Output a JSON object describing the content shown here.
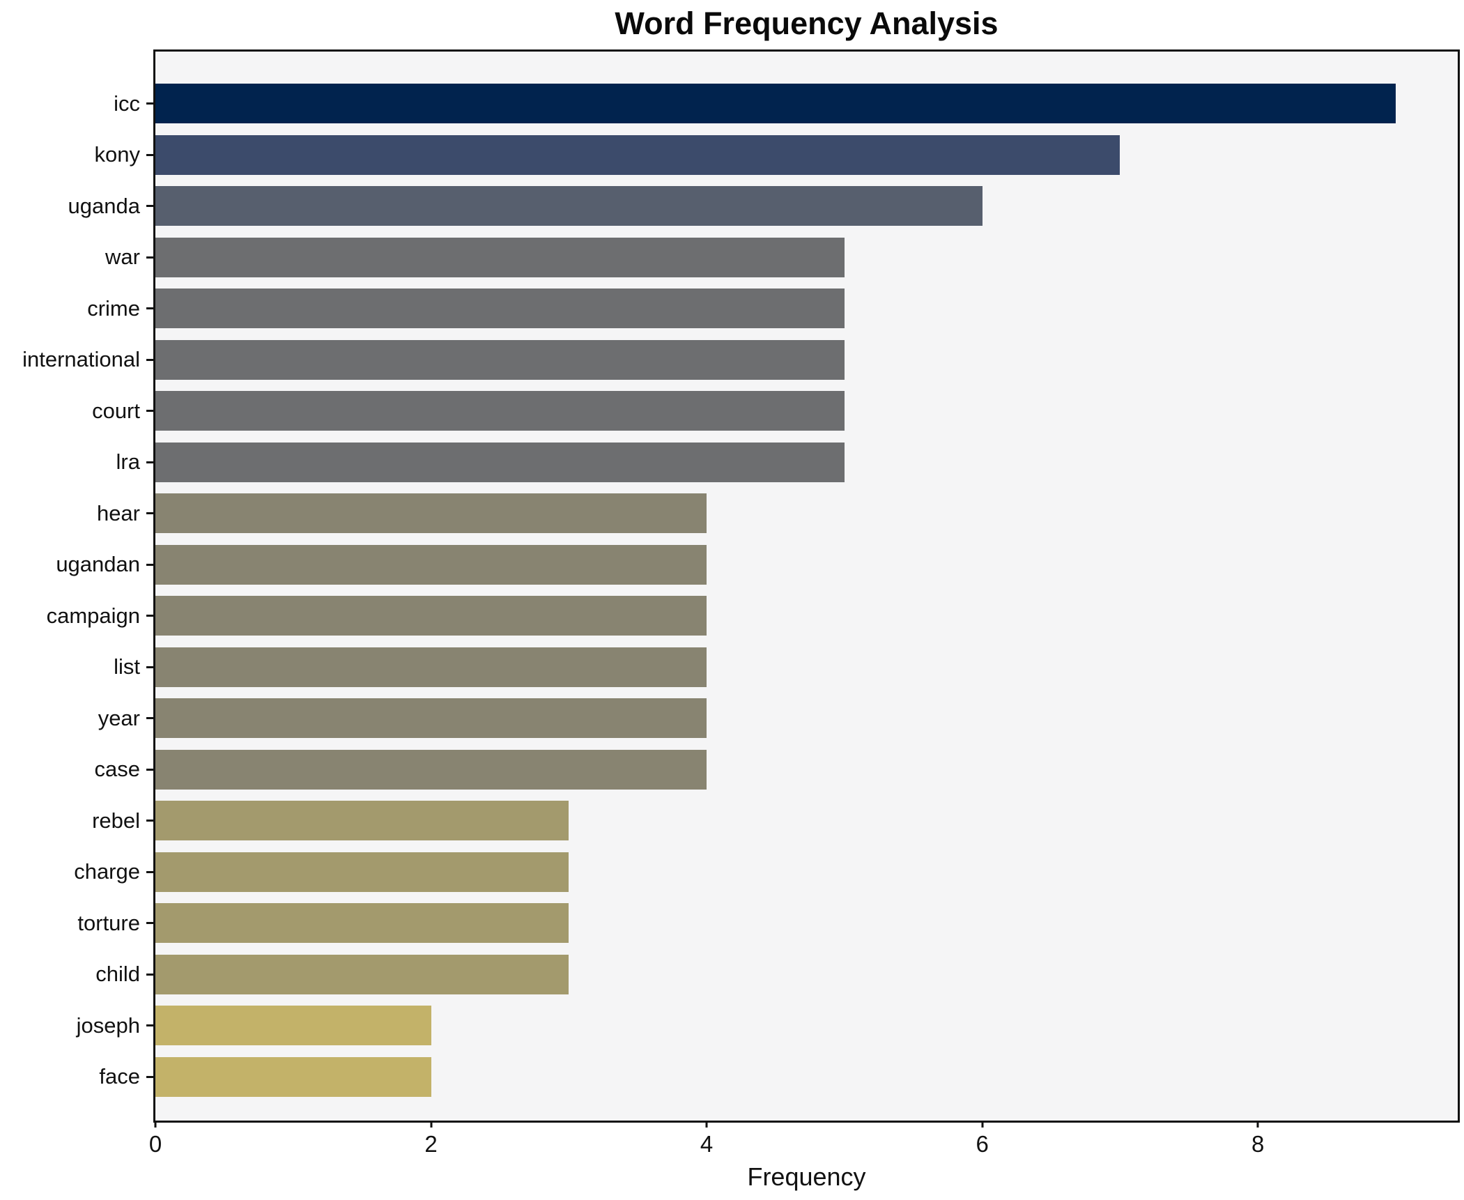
{
  "title": "Word Frequency Analysis",
  "xlabel": "Frequency",
  "chart_data": {
    "type": "bar",
    "orientation": "horizontal",
    "title": "Word Frequency Analysis",
    "xlabel": "Frequency",
    "ylabel": "",
    "grid": false,
    "legend_position": "none",
    "xlim": [
      0,
      9.45
    ],
    "xticks": [
      0,
      2,
      4,
      6,
      8
    ],
    "plot_background": "#f5f5f6",
    "figure_background": "#ffffff",
    "axis_color": "#111111",
    "categories": [
      "icc",
      "kony",
      "uganda",
      "war",
      "crime",
      "international",
      "court",
      "lra",
      "hear",
      "ugandan",
      "campaign",
      "list",
      "year",
      "case",
      "rebel",
      "charge",
      "torture",
      "child",
      "joseph",
      "face"
    ],
    "values": [
      9,
      7,
      6,
      5,
      5,
      5,
      5,
      5,
      4,
      4,
      4,
      4,
      4,
      4,
      3,
      3,
      3,
      3,
      2,
      2
    ],
    "bar_colors": [
      "#01234e",
      "#3c4b6b",
      "#575f6e",
      "#6d6e70",
      "#6d6e70",
      "#6d6e70",
      "#6d6e70",
      "#6d6e70",
      "#888471",
      "#888471",
      "#888471",
      "#888471",
      "#888471",
      "#888471",
      "#a39a6d",
      "#a39a6d",
      "#a39a6d",
      "#a39a6d",
      "#c3b269",
      "#c3b269"
    ],
    "value_color_map": {
      "9": "#01234e",
      "7": "#3c4b6b",
      "6": "#575f6e",
      "5": "#6d6e70",
      "4": "#888471",
      "3": "#a39a6d",
      "2": "#c3b269"
    }
  }
}
